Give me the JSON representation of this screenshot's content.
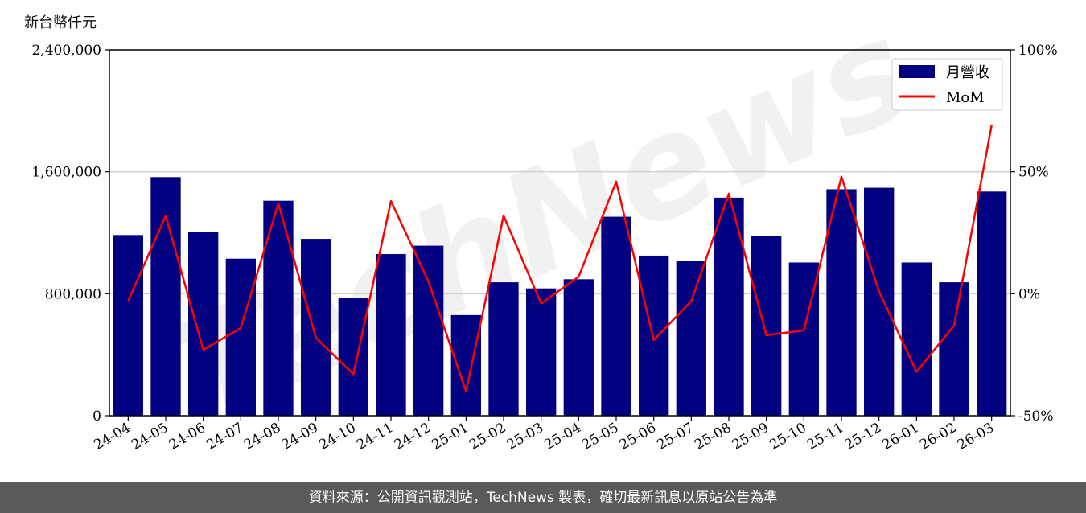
{
  "unit_label": "新台幣仟元",
  "footer_note": "資料來源：公開資訊觀測站，TechNews 製表，確切最新訊息以原站公告為準",
  "watermark": "TechNews",
  "colors": {
    "bar": "#000080",
    "line": "#ff0000",
    "grid": "#d0d0d0",
    "footer_bg": "#5a5a5a"
  },
  "chart_data": {
    "type": "bar",
    "categories": [
      "24-04",
      "24-05",
      "24-06",
      "24-07",
      "24-08",
      "24-09",
      "24-10",
      "24-11",
      "24-12",
      "25-01",
      "25-02",
      "25-03",
      "25-04",
      "25-05",
      "25-06",
      "25-07",
      "25-08",
      "25-09",
      "25-10",
      "25-11",
      "25-12",
      "26-01",
      "26-02",
      "26-03"
    ],
    "series": [
      {
        "name": "月營收",
        "type": "bar",
        "axis": "left",
        "values": [
          1185000,
          1565000,
          1205000,
          1030000,
          1410000,
          1160000,
          770000,
          1060000,
          1115000,
          660000,
          875000,
          835000,
          895000,
          1305000,
          1050000,
          1015000,
          1430000,
          1180000,
          1005000,
          1485000,
          1495000,
          1005000,
          875000,
          1470000
        ]
      },
      {
        "name": "MoM",
        "type": "line",
        "axis": "right",
        "values": [
          -3,
          32,
          -23,
          -14,
          37,
          -18,
          -33,
          38,
          5,
          -40,
          32,
          -4,
          7,
          46,
          -19,
          -3,
          41,
          -17,
          -15,
          48,
          1,
          -32,
          -13,
          69
        ]
      }
    ],
    "y_left": {
      "min": 0,
      "max": 2400000,
      "ticks": [
        0,
        800000,
        1600000,
        2400000
      ],
      "tick_labels": [
        "0",
        "800,000",
        "1,600,000",
        "2,400,000"
      ]
    },
    "y_right": {
      "min": -50,
      "max": 100,
      "ticks": [
        -50,
        0,
        50,
        100
      ],
      "tick_labels": [
        "-50%",
        "0%",
        "50%",
        "100%"
      ]
    },
    "grid": "horizontal",
    "legend_position": "top-right"
  }
}
